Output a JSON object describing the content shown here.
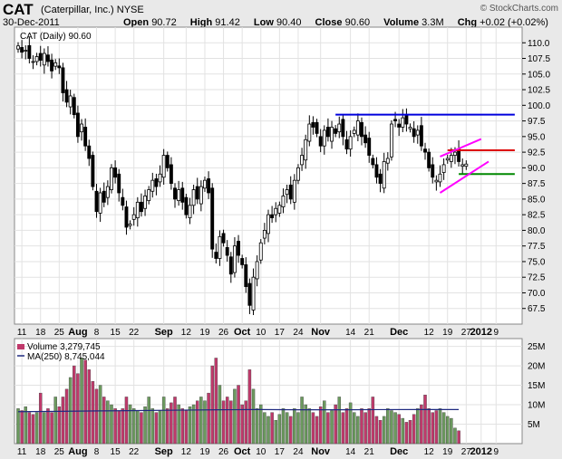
{
  "header": {
    "symbol": "CAT",
    "company": "(Caterpillar, Inc.)",
    "exchange": "NYSE",
    "date": "30-Dec-2011",
    "open_label": "Open",
    "open": "90.72",
    "high_label": "High",
    "high": "91.42",
    "low_label": "Low",
    "low": "90.40",
    "close_label": "Close",
    "close": "90.60",
    "volume_label": "Volume",
    "volume": "3.3M",
    "chg_label": "Chg",
    "chg": "+0.02 (+0.02%)",
    "copyright": "© StockCharts.com"
  },
  "price_legend": "CAT (Daily) 90.60",
  "volume_legend": "Volume 3,279,745",
  "ma_legend": "MA(250) 8,745,044",
  "colors": {
    "up": "#000000",
    "down": "#000000",
    "vol_up": "#6b9a5e",
    "vol_down": "#c0396b",
    "ma": "#1f2a80",
    "resistance": "#0000dd",
    "red_line": "#dd0000",
    "green_line": "#008800",
    "channel": "#ff00ff"
  },
  "chart_data": {
    "type": "candlestick",
    "price_axis": {
      "min": 65,
      "max": 112.5,
      "ticks": [
        "67.5",
        "70.0",
        "72.5",
        "75.0",
        "77.5",
        "80.0",
        "82.5",
        "85.0",
        "87.5",
        "90.0",
        "92.5",
        "95.0",
        "97.5",
        "100.0",
        "102.5",
        "105.0",
        "107.5",
        "110.0"
      ]
    },
    "volume_axis": {
      "min": 0,
      "max": 27,
      "unit": "M",
      "ticks": [
        "5M",
        "10M",
        "15M",
        "20M",
        "25M"
      ]
    },
    "x_tick_labels": [
      {
        "label": "11",
        "day": 1
      },
      {
        "label": "18",
        "day": 6
      },
      {
        "label": "25",
        "day": 11
      },
      {
        "label": "Aug",
        "day": 16,
        "month": true
      },
      {
        "label": "8",
        "day": 21
      },
      {
        "label": "15",
        "day": 26
      },
      {
        "label": "22",
        "day": 31
      },
      {
        "label": "Sep",
        "day": 39,
        "month": true
      },
      {
        "label": "12",
        "day": 45
      },
      {
        "label": "19",
        "day": 50
      },
      {
        "label": "26",
        "day": 55
      },
      {
        "label": "Oct",
        "day": 60,
        "month": true
      },
      {
        "label": "10",
        "day": 65
      },
      {
        "label": "17",
        "day": 70
      },
      {
        "label": "24",
        "day": 75
      },
      {
        "label": "Nov",
        "day": 81,
        "month": true
      },
      {
        "label": "14",
        "day": 89
      },
      {
        "label": "21",
        "day": 94
      },
      {
        "label": "Dec",
        "day": 102,
        "month": true
      },
      {
        "label": "12",
        "day": 110
      },
      {
        "label": "19",
        "day": 115
      },
      {
        "label": "27",
        "day": 120
      },
      {
        "label": "2012",
        "day": 124,
        "month": true
      },
      {
        "label": "9",
        "day": 128
      }
    ],
    "closes": [
      109.5,
      108.5,
      108.8,
      107.5,
      107.0,
      107.8,
      107.2,
      108.3,
      107.0,
      105.5,
      106.8,
      106.0,
      102.0,
      100.5,
      101.5,
      98.5,
      95.0,
      97.0,
      93.5,
      91.5,
      87.0,
      83.0,
      86.0,
      84.5,
      87.0,
      90.0,
      88.5,
      86.0,
      84.0,
      80.5,
      81.0,
      82.5,
      84.5,
      83.0,
      85.5,
      86.5,
      88.0,
      87.0,
      89.0,
      92.0,
      90.0,
      87.5,
      85.0,
      86.5,
      84.5,
      82.5,
      84.0,
      86.5,
      85.0,
      87.0,
      88.0,
      86.0,
      77.0,
      75.5,
      79.0,
      78.0,
      76.0,
      73.0,
      77.5,
      76.0,
      74.5,
      71.0,
      68.0,
      72.5,
      75.0,
      78.0,
      80.0,
      82.5,
      82.0,
      83.5,
      84.0,
      85.5,
      86.5,
      85.0,
      88.0,
      90.0,
      92.0,
      94.5,
      97.0,
      96.5,
      95.5,
      93.5,
      96.0,
      95.0,
      96.5,
      95.5,
      97.0,
      95.0,
      93.0,
      95.0,
      96.0,
      97.5,
      95.0,
      94.0,
      92.0,
      90.5,
      88.5,
      87.5,
      91.0,
      91.5,
      97.0,
      97.5,
      96.5,
      98.0,
      97.0,
      96.5,
      95.0,
      96.0,
      93.5,
      92.5,
      90.0,
      88.5,
      88.0,
      89.0,
      90.5,
      91.5,
      92.0,
      92.5,
      91.0,
      90.5,
      90.6
    ],
    "volumes_m": [
      9,
      8.5,
      9.5,
      8,
      7.5,
      8,
      13,
      8,
      9,
      8,
      12,
      9.5,
      12,
      14,
      17,
      20,
      18,
      22,
      21.5,
      19,
      16,
      14,
      15,
      12,
      11,
      10,
      9,
      8.5,
      9,
      12,
      10,
      9,
      8.5,
      8,
      9.5,
      12,
      9,
      8,
      8.5,
      12,
      9,
      10.5,
      12,
      10,
      9,
      8.5,
      9.5,
      10,
      11,
      12,
      11,
      13,
      20,
      22,
      15,
      11,
      12,
      11,
      14,
      15,
      10,
      11,
      19,
      14,
      9,
      10,
      8,
      7,
      8,
      6,
      7.5,
      9,
      8,
      7,
      9,
      8,
      12,
      10,
      9,
      8,
      7,
      9.5,
      11,
      8,
      8.5,
      10,
      12,
      8,
      9,
      10.5,
      8,
      7,
      9,
      8,
      9,
      12,
      7,
      6,
      7,
      9,
      8.5,
      8,
      7.5,
      6.5,
      5.5,
      6,
      7.5,
      9,
      10,
      12.5,
      9,
      8,
      8.5,
      9,
      8,
      7,
      6.5,
      4,
      3.3
    ],
    "ma250_m": [
      8.2,
      8.3,
      8.4,
      8.5,
      8.6,
      8.7,
      8.75,
      8.7,
      8.7,
      8.74,
      8.75,
      8.75
    ],
    "annotations": [
      {
        "type": "hline",
        "y": 98.5,
        "day_from": 85,
        "day_to": 133,
        "color": "resistance"
      },
      {
        "type": "hline",
        "y": 92.8,
        "day_from": 115,
        "day_to": 133,
        "color": "red_line"
      },
      {
        "type": "hline",
        "y": 89.0,
        "day_from": 118,
        "day_to": 133,
        "color": "green_line"
      },
      {
        "type": "line",
        "x1": 113,
        "y1": 91.8,
        "x2": 124,
        "y2": 94.6,
        "color": "channel"
      },
      {
        "type": "line",
        "x1": 113,
        "y1": 86.0,
        "x2": 126,
        "y2": 91.0,
        "color": "channel"
      }
    ]
  }
}
